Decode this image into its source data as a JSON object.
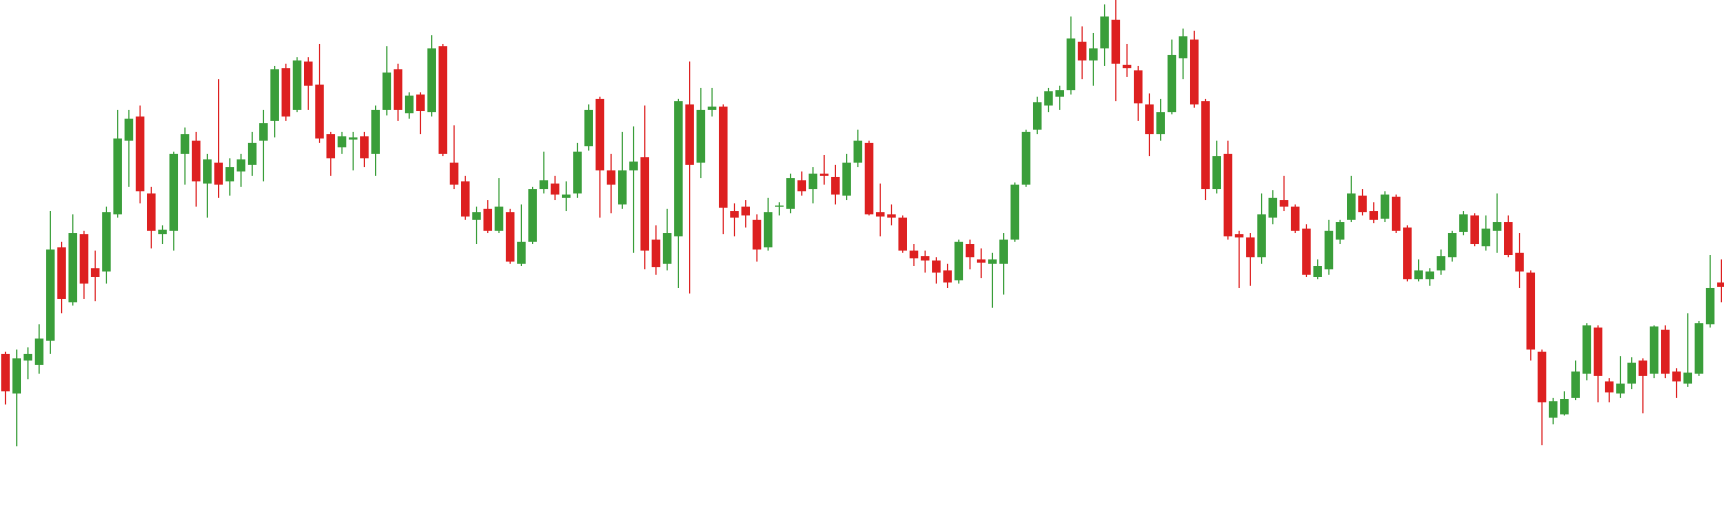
{
  "chart_data": {
    "type": "candlestick",
    "up_color": "#3a9e3a",
    "down_color": "#dd2020",
    "ylim": [
      0,
      484
    ],
    "open": [
      162,
      126,
      156,
      152,
      174,
      259,
      209,
      271,
      240,
      237,
      289,
      356,
      378,
      308,
      271,
      274,
      344,
      356,
      317,
      336,
      319,
      328,
      334,
      356,
      374,
      422,
      384,
      428,
      407,
      362,
      350,
      357,
      360,
      344,
      384,
      421,
      381,
      398,
      382,
      442,
      336,
      319,
      284,
      294,
      274,
      291,
      244,
      264,
      312,
      317,
      304,
      308,
      351,
      394,
      329,
      298,
      329,
      341,
      266,
      244,
      269,
      389,
      336,
      384,
      387,
      292,
      296,
      284,
      259,
      296,
      294,
      320,
      312,
      326,
      323,
      306,
      336,
      354,
      291,
      289,
      286,
      256,
      251,
      247,
      238,
      229,
      262,
      248,
      244,
      244,
      266,
      316,
      366,
      388,
      396,
      402,
      446,
      429,
      440,
      466,
      425,
      420,
      389,
      362,
      382,
      431,
      448,
      392,
      312,
      344,
      271,
      268,
      250,
      286,
      302,
      296,
      276,
      232,
      239,
      266,
      284,
      306,
      292,
      285,
      305,
      277,
      230,
      230,
      238,
      250,
      273,
      288,
      260,
      274,
      282,
      254,
      236,
      164,
      104,
      107,
      122,
      144,
      186,
      137,
      126,
      135,
      156,
      144,
      184,
      146,
      135,
      144,
      189,
      227,
      226
    ],
    "high": [
      164,
      166,
      168,
      189,
      292,
      264,
      289,
      274,
      256,
      296,
      384,
      384,
      388,
      314,
      279,
      346,
      368,
      364,
      344,
      412,
      340,
      344,
      364,
      384,
      424,
      426,
      432,
      432,
      444,
      364,
      364,
      364,
      364,
      388,
      442,
      426,
      400,
      400,
      452,
      444,
      370,
      324,
      296,
      302,
      322,
      294,
      298,
      314,
      346,
      324,
      319,
      354,
      389,
      396,
      344,
      364,
      369,
      388,
      279,
      294,
      394,
      428,
      404,
      404,
      389,
      299,
      302,
      289,
      304,
      300,
      326,
      328,
      332,
      343,
      334,
      344,
      366,
      356,
      317,
      298,
      288,
      262,
      256,
      250,
      244,
      266,
      266,
      258,
      254,
      272,
      318,
      366,
      396,
      404,
      406,
      469,
      460,
      454,
      480,
      484,
      444,
      424,
      399,
      394,
      448,
      458,
      456,
      394,
      356,
      356,
      274,
      272,
      308,
      311,
      324,
      298,
      280,
      248,
      284,
      284,
      324,
      312,
      300,
      310,
      307,
      279,
      248,
      240,
      257,
      274,
      292,
      290,
      288,
      308,
      288,
      272,
      238,
      166,
      122,
      128,
      156,
      190,
      188,
      140,
      160,
      159,
      158,
      188,
      188,
      149,
      199,
      192,
      252,
      248,
      284
    ],
    "low": [
      116,
      78,
      139,
      144,
      162,
      199,
      206,
      212,
      210,
      226,
      286,
      314,
      299,
      258,
      262,
      256,
      316,
      296,
      286,
      304,
      306,
      314,
      324,
      319,
      359,
      374,
      382,
      384,
      354,
      324,
      344,
      329,
      332,
      324,
      379,
      374,
      376,
      362,
      378,
      342,
      312,
      284,
      262,
      272,
      272,
      244,
      242,
      262,
      308,
      302,
      292,
      304,
      347,
      286,
      290,
      294,
      254,
      239,
      234,
      238,
      222,
      217,
      322,
      378,
      271,
      269,
      277,
      246,
      256,
      288,
      290,
      306,
      299,
      316,
      298,
      302,
      332,
      288,
      269,
      279,
      254,
      242,
      236,
      226,
      222,
      226,
      239,
      231,
      204,
      216,
      264,
      314,
      362,
      382,
      384,
      398,
      412,
      406,
      424,
      392,
      414,
      374,
      342,
      356,
      380,
      412,
      386,
      302,
      308,
      266,
      222,
      224,
      244,
      280,
      292,
      272,
      232,
      230,
      234,
      262,
      282,
      288,
      281,
      282,
      272,
      228,
      228,
      224,
      234,
      246,
      270,
      260,
      256,
      254,
      250,
      222,
      156,
      79,
      98,
      106,
      120,
      138,
      118,
      118,
      122,
      130,
      108,
      140,
      140,
      122,
      132,
      142,
      186,
      209,
      202
    ],
    "close": [
      128,
      158,
      162,
      176,
      257,
      212,
      272,
      226,
      232,
      291,
      358,
      376,
      310,
      274,
      275,
      344,
      362,
      319,
      339,
      316,
      332,
      339,
      354,
      372,
      421,
      378,
      429,
      406,
      358,
      340,
      360,
      359,
      340,
      384,
      418,
      384,
      397,
      383,
      440,
      344,
      316,
      287,
      291,
      274,
      296,
      246,
      264,
      312,
      320,
      307,
      307,
      346,
      384,
      329,
      316,
      329,
      337,
      256,
      241,
      272,
      392,
      334,
      384,
      387,
      295,
      286,
      288,
      257,
      291,
      297,
      322,
      310,
      326,
      324,
      307,
      336,
      356,
      289,
      287,
      286,
      256,
      249,
      247,
      236,
      227,
      264,
      250,
      245,
      248,
      266,
      316,
      364,
      391,
      401,
      402,
      449,
      429,
      440,
      469,
      426,
      422,
      390,
      362,
      382,
      434,
      451,
      389,
      312,
      342,
      269,
      268,
      250,
      289,
      304,
      296,
      274,
      234,
      242,
      274,
      282,
      308,
      291,
      284,
      307,
      274,
      230,
      238,
      237,
      251,
      272,
      289,
      262,
      276,
      282,
      252,
      237,
      166,
      118,
      119,
      121,
      146,
      188,
      142,
      127,
      135,
      154,
      142,
      187,
      144,
      137,
      145,
      190,
      222,
      223,
      230
    ]
  }
}
